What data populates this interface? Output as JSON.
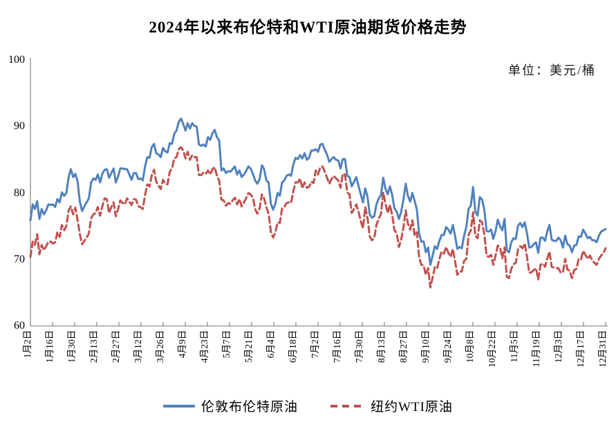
{
  "title": "2024年以来布伦特和WTI原油期货价格走势",
  "unit_label": "单位：美元/桶",
  "legend": {
    "brent_label": "伦敦布伦特原油",
    "wti_label": "纽约WTI原油"
  },
  "colors": {
    "brent": "#4F81BD",
    "wti": "#C0504D"
  },
  "chart_data": {
    "type": "line",
    "title": "2024年以来布伦特和WTI原油期货价格走势",
    "unit": "美元/桶",
    "xlabel": "",
    "ylabel": "",
    "ylim": [
      60,
      100
    ],
    "y_ticks": [
      100,
      90,
      80,
      70,
      60
    ],
    "grid": false,
    "legend_position": "bottom",
    "x_tick_labels": [
      "1月2日",
      "1月16日",
      "1月30日",
      "2月13日",
      "2月27日",
      "3月12日",
      "3月26日",
      "4月9日",
      "4月23日",
      "5月7日",
      "5月21日",
      "6月4日",
      "6月18日",
      "7月2日",
      "7月16日",
      "7月30日",
      "8月13日",
      "8月27日",
      "9月10日",
      "9月24日",
      "10月8日",
      "10月22日",
      "11月5日",
      "11月19日",
      "12月3日",
      "12月17日",
      "12月31日"
    ],
    "series": [
      {
        "name": "伦敦布伦特原油",
        "color": "#4F81BD",
        "line_style": "solid",
        "values": [
          75.9,
          78.3,
          77.6,
          78.8,
          76.1,
          77.6,
          76.8,
          77.4,
          78.3,
          78.2,
          78.3,
          77.9,
          79.1,
          78.6,
          80.1,
          79.6,
          80.0,
          82.4,
          83.6,
          82.4,
          82.9,
          81.7,
          78.7,
          77.3,
          78.0,
          78.6,
          79.2,
          81.6,
          82.2,
          82.0,
          82.8,
          81.6,
          82.9,
          83.5,
          83.6,
          82.3,
          83.0,
          83.7,
          81.6,
          82.5,
          83.7,
          83.7,
          83.6,
          83.6,
          82.8,
          82.0,
          83.0,
          83.0,
          82.1,
          82.2,
          81.9,
          84.0,
          85.4,
          85.3,
          86.9,
          87.4,
          86.0,
          85.8,
          85.4,
          86.8,
          86.3,
          86.1,
          87.5,
          87.4,
          88.9,
          89.4,
          90.7,
          91.2,
          90.4,
          89.4,
          90.5,
          89.7,
          90.5,
          90.1,
          90.0,
          87.3,
          87.1,
          87.3,
          87.0,
          88.4,
          88.0,
          89.0,
          89.5,
          88.4,
          87.9,
          83.4,
          83.7,
          83.0,
          83.3,
          83.2,
          83.6,
          84.0,
          82.8,
          83.4,
          82.4,
          82.8,
          83.3,
          84.0,
          83.7,
          82.9,
          81.9,
          81.4,
          82.1,
          84.2,
          83.6,
          81.9,
          81.6,
          78.4,
          77.5,
          78.4,
          80.0,
          79.6,
          81.6,
          81.9,
          82.6,
          82.8,
          82.6,
          84.3,
          85.3,
          85.1,
          85.7,
          85.2,
          86.0,
          85.0,
          85.3,
          86.4,
          86.4,
          86.6,
          86.2,
          87.3,
          87.4,
          86.5,
          85.8,
          84.7,
          85.1,
          85.4,
          85.0,
          84.9,
          83.7,
          85.1,
          85.1,
          82.6,
          82.4,
          81.0,
          81.7,
          82.4,
          81.1,
          79.8,
          78.6,
          80.7,
          79.5,
          76.8,
          76.3,
          76.5,
          78.3,
          79.2,
          79.7,
          82.3,
          80.7,
          79.8,
          81.0,
          79.7,
          77.7,
          77.2,
          76.1,
          77.2,
          79.0,
          81.4,
          79.6,
          78.7,
          80.0,
          78.8,
          77.5,
          73.8,
          72.7,
          72.7,
          71.1,
          71.8,
          69.2,
          70.6,
          72.0,
          71.6,
          72.8,
          73.7,
          73.7,
          74.9,
          74.5,
          73.9,
          75.2,
          73.5,
          71.6,
          71.9,
          71.7,
          73.6,
          74.9,
          77.6,
          78.1,
          80.9,
          77.2,
          76.6,
          79.4,
          79.0,
          77.5,
          74.3,
          74.2,
          74.5,
          73.1,
          74.3,
          76.0,
          75.0,
          74.4,
          76.1,
          71.4,
          71.1,
          72.6,
          73.2,
          73.1,
          75.1,
          75.5,
          74.9,
          75.6,
          73.9,
          71.8,
          71.9,
          72.3,
          72.6,
          71.0,
          73.3,
          73.3,
          72.8,
          74.2,
          75.2,
          73.0,
          72.8,
          72.8,
          73.3,
          72.9,
          71.8,
          73.6,
          72.3,
          72.1,
          71.1,
          72.1,
          72.2,
          73.5,
          73.4,
          74.5,
          73.9,
          73.2,
          73.4,
          72.9,
          72.9,
          72.6,
          73.6,
          74.2,
          74.4,
          74.6
        ]
      },
      {
        "name": "纽约WTI原油",
        "color": "#C0504D",
        "line_style": "dashed",
        "values": [
          70.4,
          72.7,
          72.2,
          73.8,
          70.8,
          72.2,
          71.4,
          72.0,
          72.7,
          72.7,
          72.4,
          72.6,
          74.1,
          73.4,
          75.2,
          74.4,
          75.1,
          77.4,
          78.0,
          76.8,
          77.8,
          75.9,
          73.8,
          72.3,
          72.8,
          73.3,
          73.9,
          76.2,
          76.8,
          77.0,
          77.9,
          76.6,
          78.0,
          79.2,
          79.1,
          77.0,
          77.9,
          78.6,
          76.5,
          77.6,
          78.9,
          78.5,
          78.3,
          79.2,
          78.7,
          78.2,
          79.1,
          79.0,
          78.0,
          77.9,
          77.6,
          79.7,
          81.3,
          81.0,
          82.7,
          83.5,
          81.7,
          81.1,
          80.6,
          82.0,
          81.4,
          81.3,
          83.2,
          83.7,
          85.2,
          85.4,
          86.6,
          86.9,
          86.4,
          85.2,
          86.2,
          85.0,
          85.7,
          85.4,
          85.4,
          82.7,
          82.7,
          83.1,
          82.9,
          83.4,
          82.8,
          83.6,
          83.9,
          82.6,
          81.9,
          79.0,
          78.9,
          78.1,
          78.5,
          78.4,
          78.9,
          79.3,
          78.3,
          79.1,
          78.0,
          78.6,
          79.2,
          80.0,
          79.8,
          79.3,
          77.6,
          76.9,
          77.7,
          79.8,
          79.2,
          77.9,
          76.9,
          74.2,
          73.3,
          74.1,
          75.6,
          75.5,
          77.7,
          77.9,
          78.5,
          78.6,
          78.5,
          80.3,
          81.6,
          81.6,
          82.2,
          80.7,
          81.6,
          80.8,
          80.9,
          81.7,
          81.5,
          83.4,
          82.8,
          83.9,
          84.0,
          83.2,
          82.3,
          81.4,
          82.1,
          82.6,
          82.2,
          81.9,
          80.8,
          82.9,
          82.8,
          80.1,
          79.8,
          77.0,
          77.6,
          78.3,
          77.2,
          75.8,
          74.7,
          77.9,
          76.3,
          73.5,
          72.9,
          73.2,
          75.2,
          76.2,
          76.8,
          80.1,
          78.4,
          77.0,
          78.2,
          76.7,
          74.4,
          74.0,
          71.9,
          73.0,
          74.8,
          77.4,
          75.4,
          74.5,
          75.9,
          73.6,
          74.1,
          70.3,
          69.2,
          69.1,
          67.7,
          68.7,
          65.8,
          67.3,
          68.9,
          68.7,
          70.1,
          71.2,
          70.9,
          71.9,
          71.0,
          70.4,
          71.6,
          69.7,
          67.7,
          68.2,
          68.2,
          69.8,
          70.1,
          73.7,
          74.4,
          77.1,
          73.6,
          73.2,
          75.9,
          75.6,
          73.8,
          70.6,
          70.4,
          70.7,
          69.2,
          70.6,
          72.1,
          71.8,
          70.2,
          71.8,
          67.4,
          67.2,
          68.6,
          69.3,
          69.5,
          71.5,
          72.0,
          71.7,
          72.4,
          70.4,
          68.0,
          68.1,
          68.4,
          68.7,
          67.0,
          69.2,
          69.4,
          68.9,
          70.1,
          71.2,
          68.9,
          68.8,
          68.7,
          68.7,
          68.0,
          68.1,
          70.1,
          68.5,
          68.3,
          67.2,
          68.4,
          68.6,
          70.1,
          70.0,
          71.3,
          70.7,
          70.1,
          70.6,
          69.9,
          69.5,
          69.2,
          70.1,
          70.6,
          71.0,
          71.7
        ]
      }
    ]
  }
}
